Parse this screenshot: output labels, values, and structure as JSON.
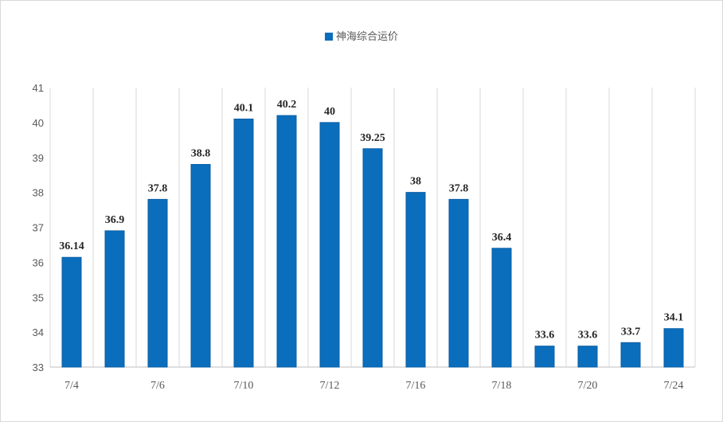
{
  "chart_data": {
    "type": "bar",
    "categories": [
      "7/4",
      "",
      "7/6",
      "",
      "7/10",
      "",
      "7/12",
      "",
      "7/16",
      "",
      "7/18",
      "",
      "7/20",
      "",
      "7/24"
    ],
    "series": [
      {
        "name": "神海综合运价",
        "values": [
          36.14,
          36.9,
          37.8,
          38.8,
          40.1,
          40.2,
          40,
          39.25,
          38,
          37.8,
          36.4,
          33.6,
          33.6,
          33.7,
          34.1
        ],
        "labels": [
          "36.14",
          "36.9",
          "37.8",
          "38.8",
          "40.1",
          "40.2",
          "40",
          "39.25",
          "38",
          "37.8",
          "36.4",
          "33.6",
          "33.6",
          "33.7",
          "34.1"
        ]
      }
    ],
    "y_ticks": [
      "33",
      "34",
      "35",
      "36",
      "37",
      "38",
      "39",
      "40",
      "41"
    ],
    "ylim": [
      33,
      41
    ],
    "bar_color": "#0a6ebd",
    "grid": "vertical",
    "legend_position": "top-center",
    "title": "",
    "xlabel": "",
    "ylabel": ""
  }
}
